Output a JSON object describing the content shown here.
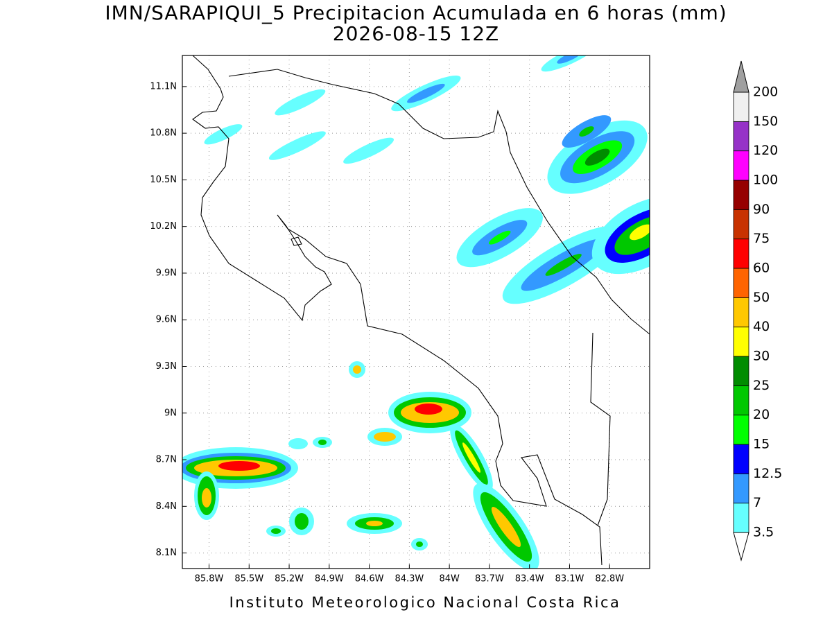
{
  "title": "IMN/SARAPIQUI_5 Precipitacion Acumulada en 6 horas (mm)",
  "subtitle": "2026-08-15 12Z",
  "map": {
    "xlim": [
      -86,
      -82.5
    ],
    "ylim": [
      8,
      11.3
    ],
    "xticks": [
      {
        "value": -85.8,
        "label": "85.8W"
      },
      {
        "value": -85.5,
        "label": "85.5W"
      },
      {
        "value": -85.2,
        "label": "85.2W"
      },
      {
        "value": -84.9,
        "label": "84.9W"
      },
      {
        "value": -84.6,
        "label": "84.6W"
      },
      {
        "value": -84.3,
        "label": "84.3W"
      },
      {
        "value": -84,
        "label": "84W"
      },
      {
        "value": -83.7,
        "label": "83.7W"
      },
      {
        "value": -83.4,
        "label": "83.4W"
      },
      {
        "value": -83.1,
        "label": "83.1W"
      },
      {
        "value": -82.8,
        "label": "82.8W"
      }
    ],
    "yticks": [
      {
        "value": 8.1,
        "label": "8.1N"
      },
      {
        "value": 8.4,
        "label": "8.4N"
      },
      {
        "value": 8.7,
        "label": "8.7N"
      },
      {
        "value": 9,
        "label": "9N"
      },
      {
        "value": 9.3,
        "label": "9.3N"
      },
      {
        "value": 9.6,
        "label": "9.6N"
      },
      {
        "value": 9.9,
        "label": "9.9N"
      },
      {
        "value": 10.2,
        "label": "10.2N"
      },
      {
        "value": 10.5,
        "label": "10.5N"
      },
      {
        "value": 10.8,
        "label": "10.8N"
      },
      {
        "value": 11.1,
        "label": "11.1N"
      }
    ],
    "grid": true
  },
  "colorbar": {
    "levels": [
      3.5,
      7,
      12.5,
      15,
      20,
      25,
      30,
      40,
      50,
      60,
      75,
      90,
      100,
      120,
      150,
      200
    ],
    "colors": [
      "#66ffff",
      "#3399ff",
      "#0000ff",
      "#00ff00",
      "#00c800",
      "#008c00",
      "#ffff00",
      "#ffc800",
      "#ff6400",
      "#ff0000",
      "#c83200",
      "#960000",
      "#ff00ff",
      "#9632c8",
      "#f0f0f0"
    ],
    "under_color": "#ffffff",
    "over_color": "#a0a0a0"
  },
  "footer": "Instituto Meteorologico Nacional Costa Rica"
}
